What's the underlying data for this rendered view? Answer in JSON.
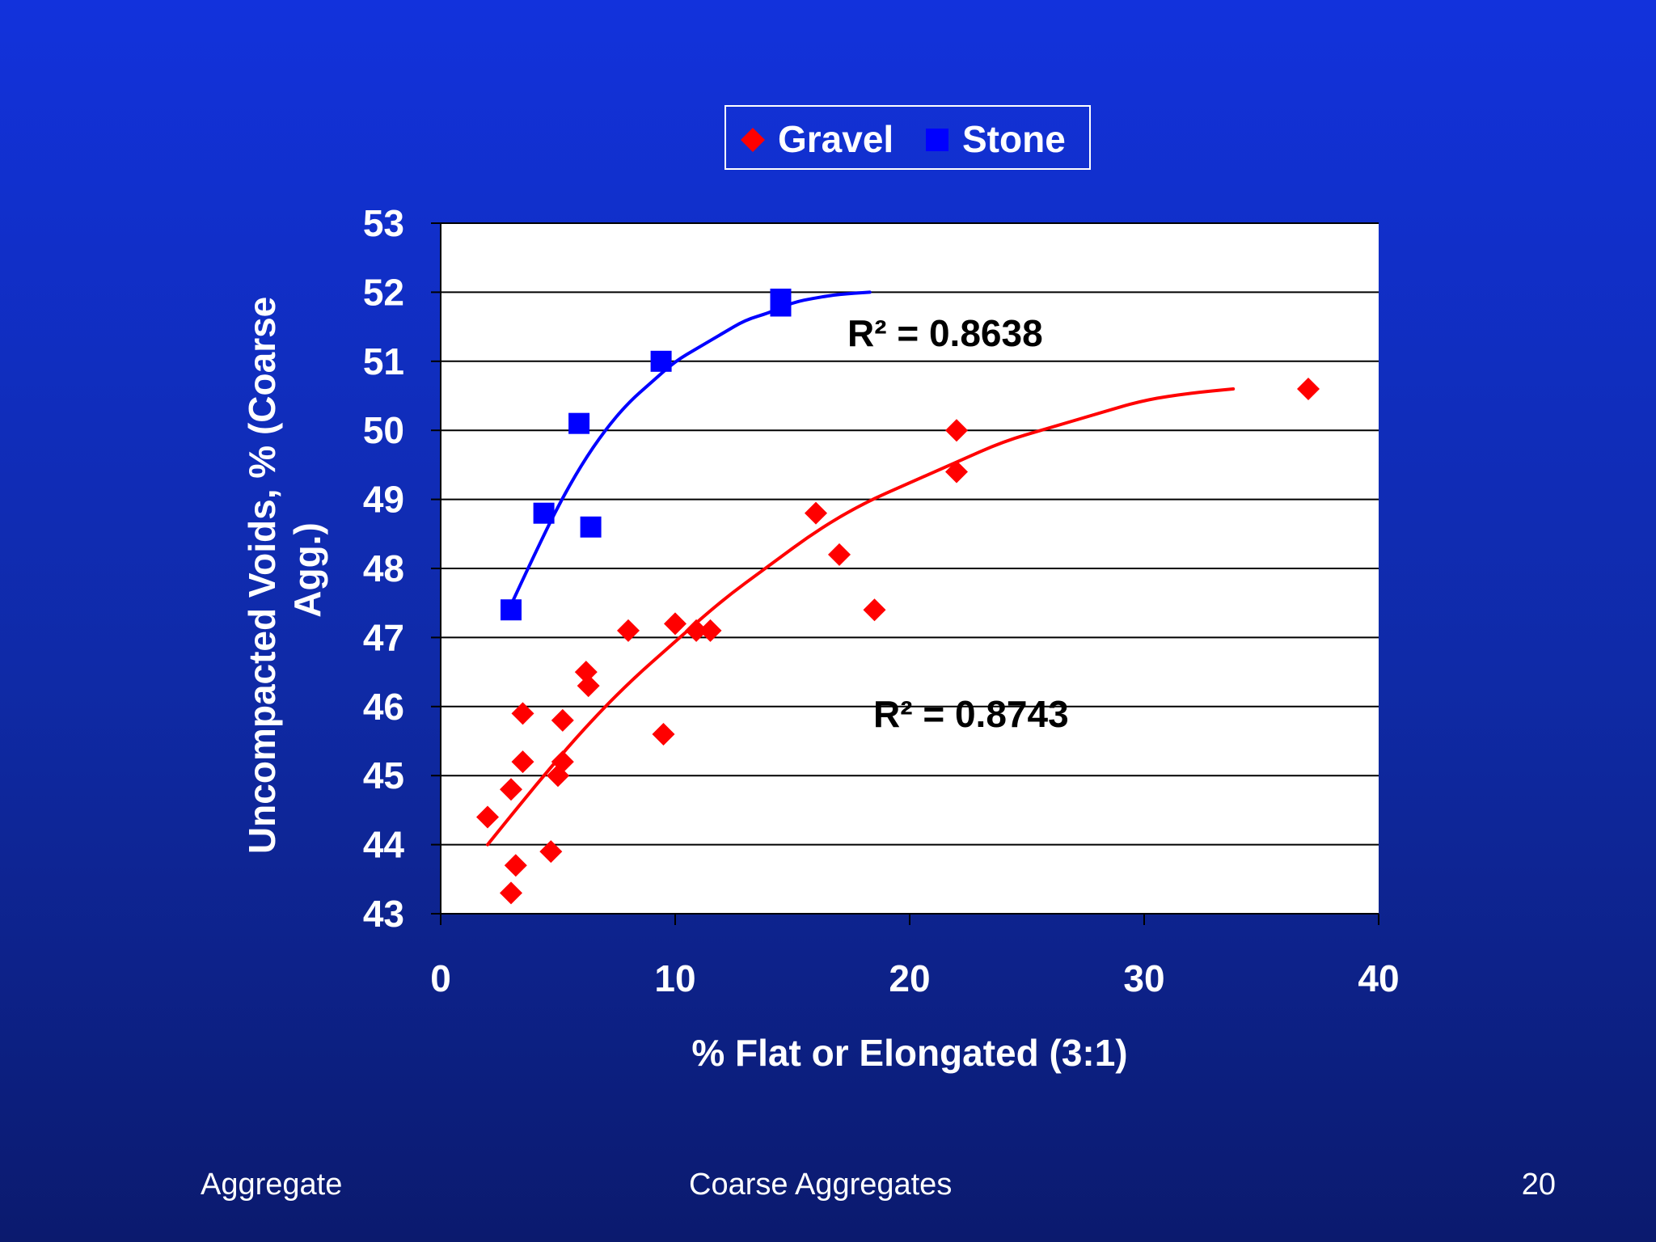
{
  "slide": {
    "footer_left": "Aggregate",
    "footer_center": "Coarse Aggregates",
    "page_number": "20"
  },
  "colors": {
    "background_top": "#1232dc",
    "background_bottom": "#0b1a6e",
    "plot_area": "#ffffff",
    "gravel": "#ff0000",
    "stone": "#0000ff",
    "gridline": "#000000",
    "axis_text": "#ffffff"
  },
  "chart_data": {
    "type": "scatter",
    "title": "",
    "xlabel": "% Flat or Elongated (3:1)",
    "ylabel": "Uncompacted Voids, % (Coarse Agg.)",
    "xlim": [
      0,
      40
    ],
    "ylim": [
      43,
      53
    ],
    "x_ticks": [
      0,
      10,
      20,
      30,
      40
    ],
    "y_ticks": [
      43,
      44,
      45,
      46,
      47,
      48,
      49,
      50,
      51,
      52,
      53
    ],
    "grid": "horizontal",
    "legend_position": "top-center",
    "series": [
      {
        "name": "Gravel",
        "marker": "diamond",
        "color": "#ff0000",
        "points": [
          [
            2.0,
            44.4
          ],
          [
            3.0,
            44.8
          ],
          [
            3.2,
            43.7
          ],
          [
            3.0,
            43.3
          ],
          [
            3.5,
            45.2
          ],
          [
            3.5,
            45.9
          ],
          [
            4.7,
            43.9
          ],
          [
            5.0,
            45.0
          ],
          [
            5.2,
            45.2
          ],
          [
            5.2,
            45.8
          ],
          [
            6.2,
            46.5
          ],
          [
            6.3,
            46.3
          ],
          [
            8.0,
            47.1
          ],
          [
            9.5,
            45.6
          ],
          [
            10.0,
            47.2
          ],
          [
            10.9,
            47.1
          ],
          [
            11.5,
            47.1
          ],
          [
            16.0,
            48.8
          ],
          [
            17.0,
            48.2
          ],
          [
            18.5,
            47.4
          ],
          [
            22.0,
            50.0
          ],
          [
            22.0,
            49.4
          ],
          [
            37.0,
            50.6
          ]
        ],
        "trendline": {
          "type": "polynomial",
          "r_squared_label": "R² = 0.8743",
          "points": [
            [
              2.0,
              44.0
            ],
            [
              4.0,
              44.84
            ],
            [
              6.0,
              45.64
            ],
            [
              8.0,
              46.34
            ],
            [
              10.0,
              46.94
            ],
            [
              12.0,
              47.54
            ],
            [
              14.0,
              48.04
            ],
            [
              16.0,
              48.54
            ],
            [
              18.0,
              48.94
            ],
            [
              20.0,
              49.24
            ],
            [
              22.0,
              49.54
            ],
            [
              24.0,
              49.84
            ],
            [
              26.0,
              50.04
            ],
            [
              28.0,
              50.24
            ],
            [
              30.0,
              50.44
            ],
            [
              32.0,
              50.54
            ],
            [
              33.8,
              50.6
            ]
          ]
        }
      },
      {
        "name": "Stone",
        "marker": "square",
        "color": "#0000ff",
        "points": [
          [
            3.0,
            47.4
          ],
          [
            4.4,
            48.8
          ],
          [
            5.9,
            50.1
          ],
          [
            6.4,
            48.6
          ],
          [
            9.4,
            51.0
          ],
          [
            14.5,
            51.8
          ],
          [
            14.5,
            51.9
          ]
        ],
        "trendline": {
          "type": "polynomial",
          "r_squared_label": "R² = 0.8638",
          "points": [
            [
              2.9,
              47.4
            ],
            [
              4.0,
              48.2
            ],
            [
              5.0,
              48.9
            ],
            [
              6.0,
              49.5
            ],
            [
              7.0,
              50.0
            ],
            [
              8.0,
              50.4
            ],
            [
              9.0,
              50.7
            ],
            [
              10.0,
              51.0
            ],
            [
              11.0,
              51.2
            ],
            [
              12.0,
              51.4
            ],
            [
              13.0,
              51.6
            ],
            [
              14.0,
              51.7
            ],
            [
              15.0,
              51.85
            ],
            [
              16.0,
              51.92
            ],
            [
              17.0,
              51.97
            ],
            [
              18.3,
              52.0
            ]
          ]
        }
      }
    ]
  }
}
